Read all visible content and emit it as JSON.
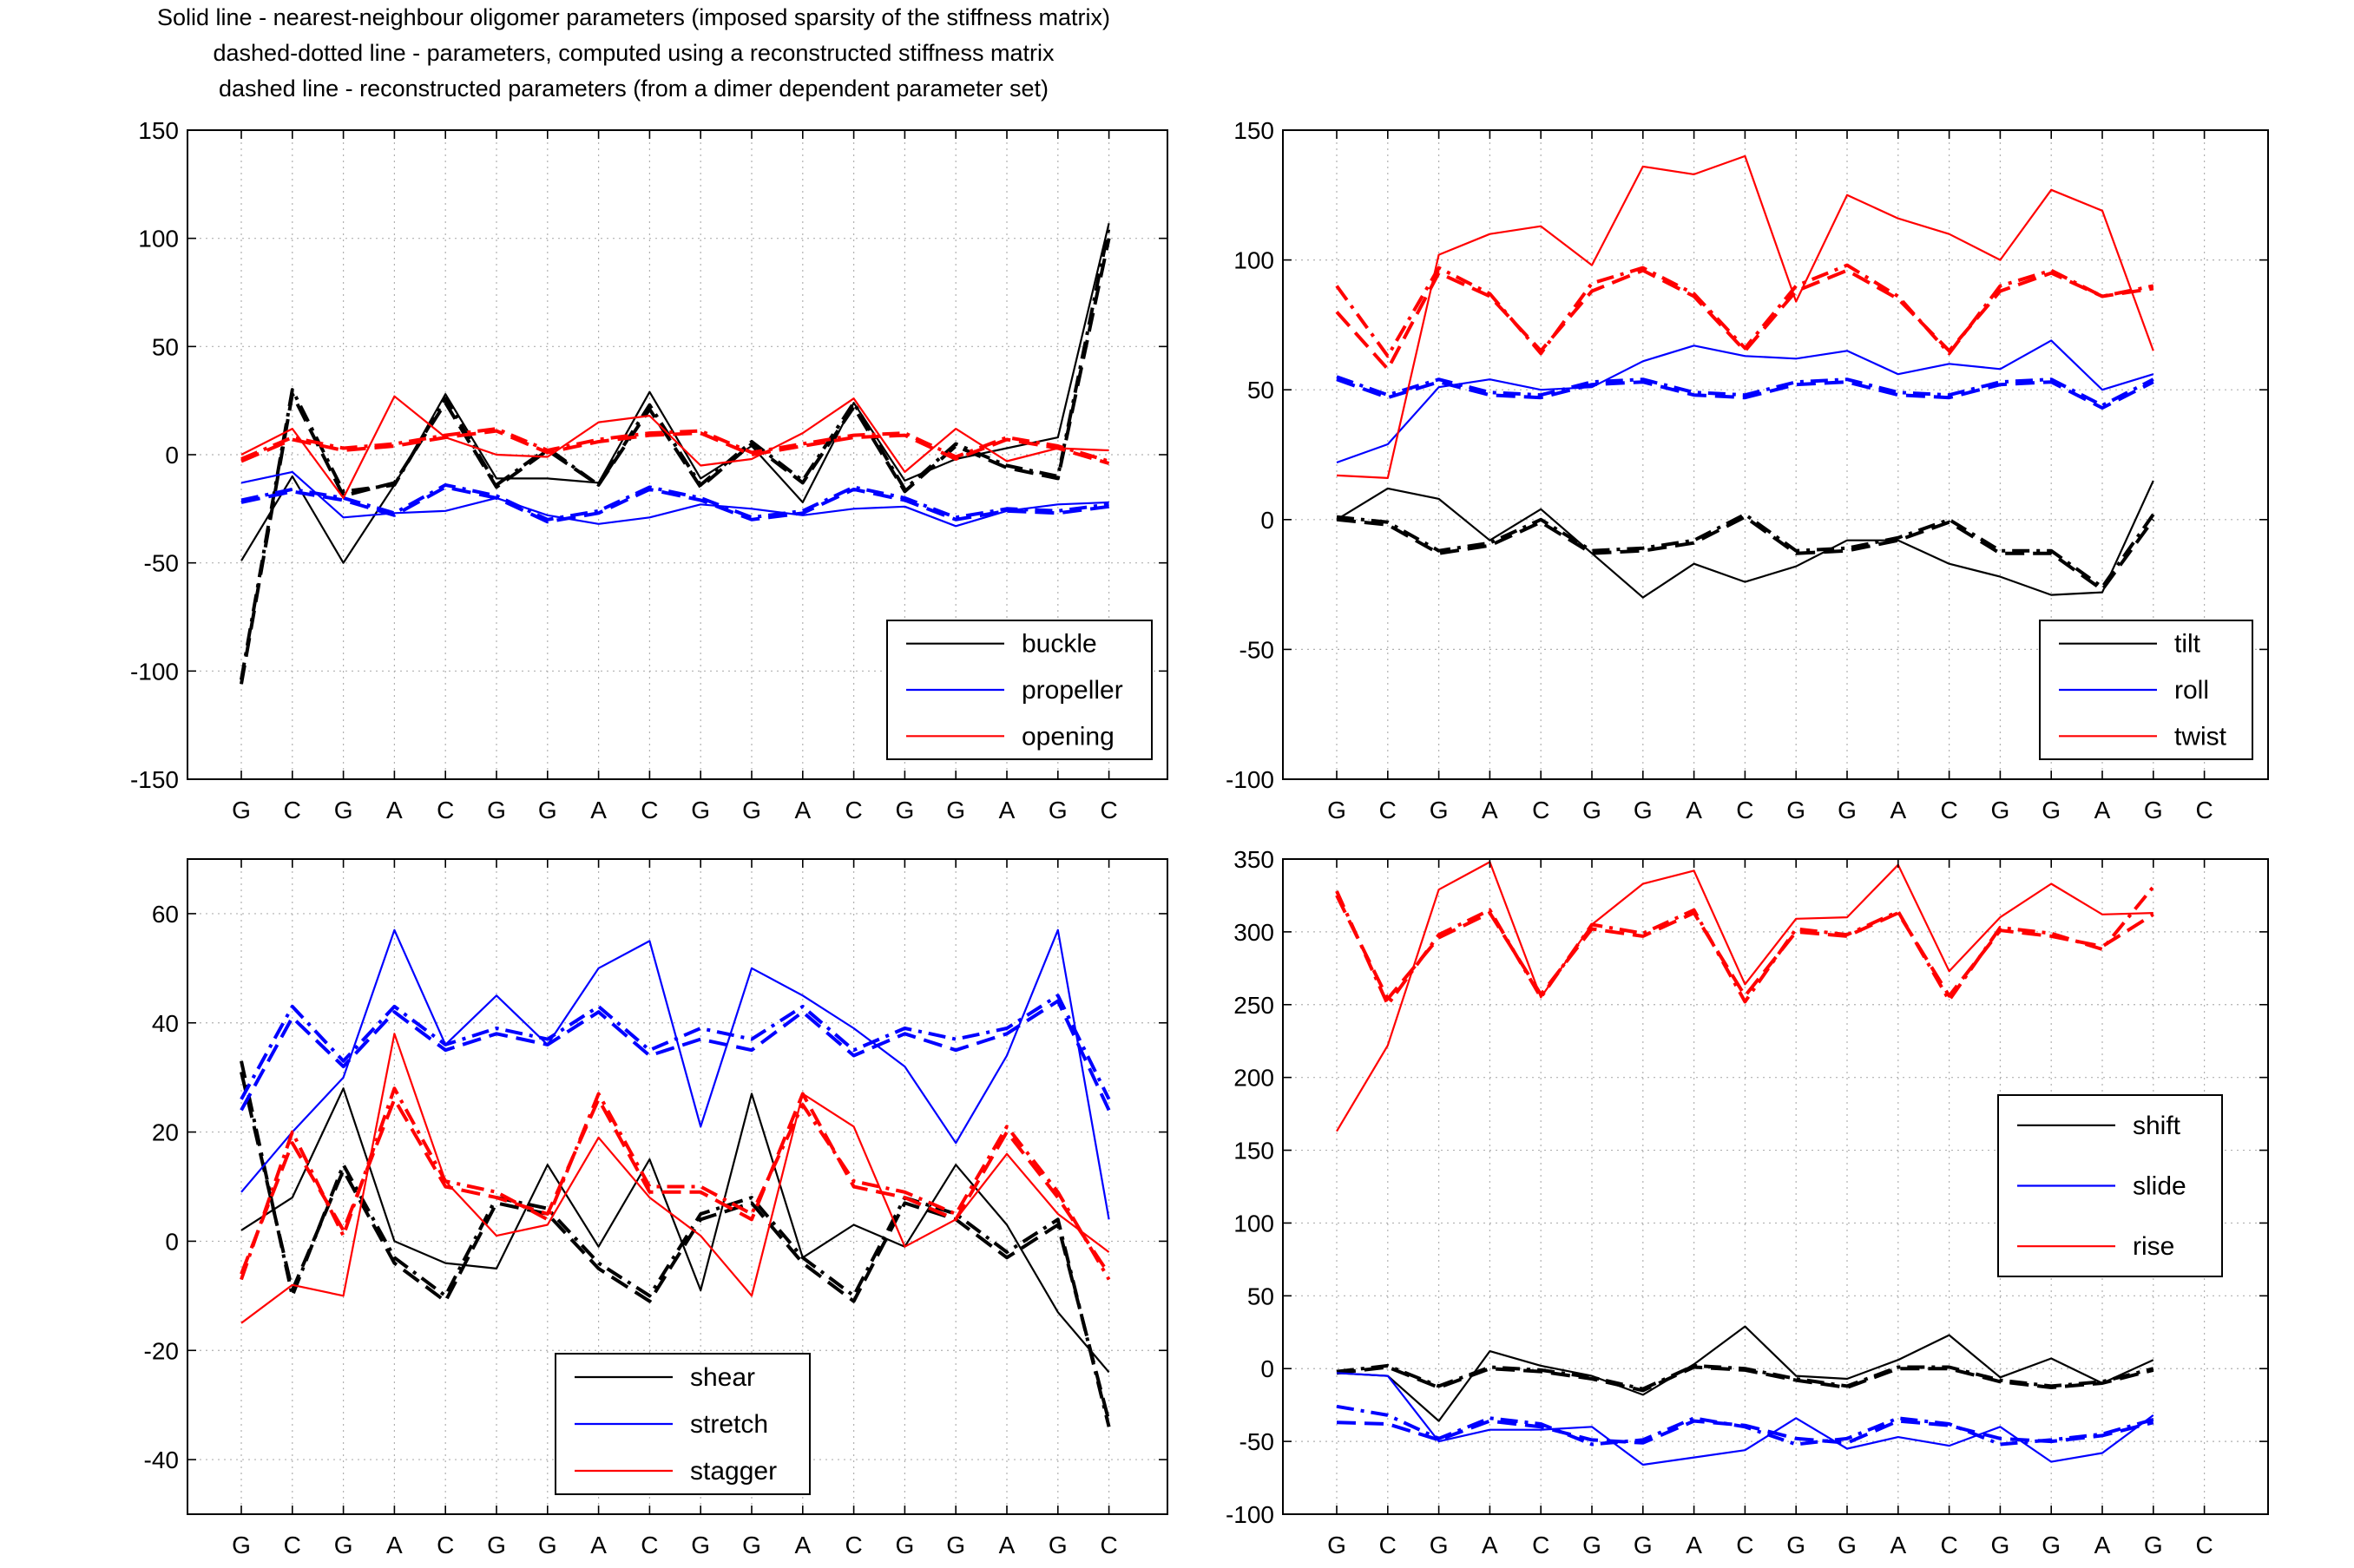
{
  "figure_title": {
    "line1": "Solid line - nearest-neighbour oligomer parameters (imposed sparsity of the stiffness matrix)",
    "line2": "dashed-dotted line - parameters, computed using a reconstructed stiffness matrix",
    "line3": "dashed line - reconstructed parameters (from a dimer dependent parameter set)"
  },
  "colors": {
    "black": "#000000",
    "blue": "#0000ff",
    "red": "#ff0000",
    "grid": "#b0b0b0"
  },
  "line_styles": [
    "solid",
    "dashed-dotted",
    "dashed"
  ],
  "chart_data": [
    {
      "type": "line",
      "x_categories": [
        "G",
        "C",
        "G",
        "A",
        "C",
        "G",
        "G",
        "A",
        "C",
        "G",
        "G",
        "A",
        "C",
        "G",
        "G",
        "A",
        "G",
        "C"
      ],
      "ylim": [
        -150,
        150
      ],
      "yticks": [
        -150,
        -100,
        -50,
        0,
        50,
        100,
        150
      ],
      "grid": true,
      "legend_position": "bottom-right",
      "legend": [
        "buckle",
        "propeller",
        "opening"
      ],
      "series": [
        {
          "name": "buckle",
          "color": "black",
          "style": "solid",
          "values": [
            -49,
            -10,
            -50,
            -14,
            28,
            -11,
            -11,
            -13,
            29,
            -11,
            4,
            -22,
            24,
            -12,
            -2,
            3,
            8,
            107
          ]
        },
        {
          "name": "buckle",
          "color": "black",
          "style": "dashed-dotted",
          "values": [
            -104,
            30,
            -17,
            -14,
            26,
            -14,
            3,
            -14,
            23,
            -14,
            6,
            -12,
            24,
            -16,
            5,
            -5,
            -10,
            105
          ]
        },
        {
          "name": "buckle",
          "color": "black",
          "style": "dashed",
          "values": [
            -106,
            28,
            -19,
            -13,
            24,
            -15,
            2,
            -14,
            21,
            -15,
            5,
            -13,
            22,
            -17,
            4,
            -6,
            -11,
            100
          ]
        },
        {
          "name": "propeller",
          "color": "blue",
          "style": "solid",
          "values": [
            -13,
            -8,
            -29,
            -27,
            -26,
            -20,
            -28,
            -32,
            -29,
            -23,
            -25,
            -28,
            -25,
            -24,
            -33,
            -26,
            -23,
            -22
          ]
        },
        {
          "name": "propeller",
          "color": "blue",
          "style": "dashed-dotted",
          "values": [
            -21,
            -16,
            -20,
            -27,
            -14,
            -19,
            -30,
            -26,
            -15,
            -20,
            -29,
            -26,
            -15,
            -20,
            -29,
            -25,
            -26,
            -23
          ]
        },
        {
          "name": "propeller",
          "color": "blue",
          "style": "dashed",
          "values": [
            -22,
            -17,
            -21,
            -28,
            -15,
            -20,
            -31,
            -27,
            -16,
            -21,
            -30,
            -27,
            -16,
            -21,
            -30,
            -26,
            -27,
            -24
          ]
        },
        {
          "name": "opening",
          "color": "red",
          "style": "solid",
          "values": [
            0,
            12,
            -20,
            27,
            8,
            0,
            -1,
            15,
            18,
            -5,
            -2,
            10,
            26,
            -8,
            12,
            -3,
            3,
            2
          ]
        },
        {
          "name": "opening",
          "color": "red",
          "style": "dashed-dotted",
          "values": [
            -2,
            8,
            3,
            5,
            9,
            12,
            2,
            7,
            10,
            11,
            1,
            5,
            9,
            10,
            -1,
            8,
            4,
            -3
          ]
        },
        {
          "name": "opening",
          "color": "red",
          "style": "dashed",
          "values": [
            -3,
            7,
            2,
            4,
            8,
            11,
            1,
            6,
            9,
            10,
            0,
            4,
            8,
            9,
            -2,
            7,
            3,
            -4
          ]
        }
      ]
    },
    {
      "type": "line",
      "x_categories": [
        "G",
        "C",
        "G",
        "A",
        "C",
        "G",
        "G",
        "A",
        "C",
        "G",
        "G",
        "A",
        "C",
        "G",
        "G",
        "A",
        "G",
        "C"
      ],
      "ylim": [
        -100,
        150
      ],
      "yticks": [
        -100,
        -50,
        0,
        50,
        100,
        150
      ],
      "grid": true,
      "legend_position": "bottom-right",
      "legend": [
        "tilt",
        "roll",
        "twist"
      ],
      "series": [
        {
          "name": "tilt",
          "color": "black",
          "style": "solid",
          "values": [
            0,
            12,
            8,
            -8,
            4,
            -13,
            -30,
            -17,
            -24,
            -18,
            -8,
            -8,
            -17,
            -22,
            -29,
            -28,
            15
          ]
        },
        {
          "name": "tilt",
          "color": "black",
          "style": "dashed-dotted",
          "values": [
            1,
            -1,
            -12,
            -9,
            0,
            -12,
            -11,
            -8,
            2,
            -12,
            -11,
            -7,
            0,
            -12,
            -12,
            -26,
            2
          ]
        },
        {
          "name": "tilt",
          "color": "black",
          "style": "dashed",
          "values": [
            0,
            -2,
            -13,
            -10,
            -1,
            -13,
            -12,
            -9,
            1,
            -13,
            -12,
            -8,
            -1,
            -13,
            -13,
            -27,
            0
          ]
        },
        {
          "name": "roll",
          "color": "blue",
          "style": "solid",
          "values": [
            22,
            29,
            51,
            54,
            50,
            51,
            61,
            67,
            63,
            62,
            65,
            56,
            60,
            58,
            69,
            50,
            56
          ]
        },
        {
          "name": "roll",
          "color": "blue",
          "style": "dashed-dotted",
          "values": [
            55,
            48,
            54,
            49,
            48,
            53,
            54,
            49,
            48,
            53,
            54,
            49,
            48,
            53,
            54,
            44,
            54
          ]
        },
        {
          "name": "roll",
          "color": "blue",
          "style": "dashed",
          "values": [
            54,
            47,
            53,
            48,
            47,
            52,
            53,
            48,
            47,
            52,
            53,
            48,
            47,
            52,
            53,
            43,
            53
          ]
        },
        {
          "name": "twist",
          "color": "red",
          "style": "solid",
          "values": [
            17,
            16,
            102,
            110,
            113,
            98,
            136,
            133,
            140,
            84,
            125,
            116,
            110,
            100,
            127,
            119,
            65
          ]
        },
        {
          "name": "twist",
          "color": "red",
          "style": "dashed-dotted",
          "values": [
            90,
            63,
            97,
            87,
            64,
            91,
            97,
            87,
            66,
            90,
            98,
            86,
            64,
            90,
            96,
            86,
            90
          ]
        },
        {
          "name": "twist",
          "color": "red",
          "style": "dashed",
          "values": [
            80,
            58,
            95,
            86,
            65,
            88,
            96,
            86,
            65,
            88,
            96,
            85,
            65,
            88,
            95,
            86,
            89
          ]
        }
      ]
    },
    {
      "type": "line",
      "x_categories": [
        "G",
        "C",
        "G",
        "A",
        "C",
        "G",
        "G",
        "A",
        "C",
        "G",
        "G",
        "A",
        "C",
        "G",
        "G",
        "A",
        "G",
        "C"
      ],
      "ylim": [
        -50,
        70
      ],
      "yticks": [
        -40,
        -20,
        0,
        20,
        40,
        60
      ],
      "grid": true,
      "legend_position": "bottom-center",
      "legend": [
        "shear",
        "stretch",
        "stagger"
      ],
      "series": [
        {
          "name": "shear",
          "color": "black",
          "style": "solid",
          "values": [
            2,
            8,
            28,
            0,
            -4,
            -5,
            14,
            -1,
            15,
            -9,
            27,
            -3,
            3,
            -1,
            14,
            3,
            -13,
            -24
          ]
        },
        {
          "name": "shear",
          "color": "black",
          "style": "dashed-dotted",
          "values": [
            33,
            -10,
            14,
            -3,
            -10,
            8,
            6,
            -4,
            -10,
            5,
            8,
            -3,
            -10,
            8,
            5,
            -2,
            4,
            -34
          ]
        },
        {
          "name": "shear",
          "color": "black",
          "style": "dashed",
          "values": [
            31,
            -9,
            13,
            -4,
            -11,
            7,
            5,
            -5,
            -11,
            4,
            7,
            -4,
            -11,
            7,
            4,
            -3,
            3,
            -33
          ]
        },
        {
          "name": "stretch",
          "color": "blue",
          "style": "solid",
          "values": [
            9,
            20,
            30,
            57,
            36,
            45,
            36,
            50,
            55,
            21,
            50,
            45,
            39,
            32,
            18,
            34,
            57,
            4
          ]
        },
        {
          "name": "stretch",
          "color": "blue",
          "style": "dashed-dotted",
          "values": [
            26,
            43,
            33,
            43,
            36,
            39,
            37,
            43,
            35,
            39,
            37,
            43,
            35,
            39,
            37,
            39,
            45,
            26
          ]
        },
        {
          "name": "stretch",
          "color": "blue",
          "style": "dashed",
          "values": [
            24,
            41,
            32,
            42,
            35,
            38,
            36,
            42,
            34,
            37,
            35,
            42,
            34,
            38,
            35,
            38,
            44,
            24
          ]
        },
        {
          "name": "stagger",
          "color": "red",
          "style": "solid",
          "values": [
            -15,
            -8,
            -10,
            38,
            11,
            1,
            3,
            19,
            8,
            1,
            -10,
            27,
            21,
            -1,
            4,
            16,
            5,
            -2
          ]
        },
        {
          "name": "stagger",
          "color": "red",
          "style": "dashed-dotted",
          "values": [
            -7,
            20,
            1,
            28,
            11,
            9,
            4,
            27,
            10,
            10,
            5,
            25,
            11,
            9,
            5,
            21,
            9,
            -7
          ]
        },
        {
          "name": "stagger",
          "color": "red",
          "style": "dashed",
          "values": [
            -6,
            18,
            2,
            26,
            10,
            8,
            5,
            26,
            9,
            9,
            4,
            27,
            10,
            8,
            4,
            20,
            8,
            -6
          ]
        }
      ]
    },
    {
      "type": "line",
      "x_categories": [
        "G",
        "C",
        "G",
        "A",
        "C",
        "G",
        "G",
        "A",
        "C",
        "G",
        "G",
        "A",
        "C",
        "G",
        "G",
        "A",
        "G",
        "C"
      ],
      "ylim": [
        -100,
        350
      ],
      "yticks": [
        -100,
        -50,
        0,
        50,
        100,
        150,
        200,
        250,
        300,
        350
      ],
      "grid": true,
      "legend_position": "right",
      "legend": [
        "shift",
        "slide",
        "rise"
      ],
      "series": [
        {
          "name": "shift",
          "color": "black",
          "style": "solid",
          "values": [
            -3,
            -5,
            -36,
            12,
            2,
            -5,
            -18,
            3,
            29,
            -5,
            -7,
            6,
            23,
            -6,
            7,
            -10,
            6
          ]
        },
        {
          "name": "shift",
          "color": "black",
          "style": "dashed-dotted",
          "values": [
            -2,
            2,
            -12,
            1,
            -1,
            -6,
            -14,
            2,
            0,
            -7,
            -12,
            1,
            1,
            -8,
            -12,
            -9,
            0
          ]
        },
        {
          "name": "shift",
          "color": "black",
          "style": "dashed",
          "values": [
            -3,
            1,
            -13,
            0,
            -2,
            -7,
            -15,
            1,
            -1,
            -8,
            -13,
            0,
            0,
            -9,
            -13,
            -10,
            -1
          ]
        },
        {
          "name": "slide",
          "color": "blue",
          "style": "solid",
          "values": [
            -3,
            -5,
            -50,
            -42,
            -42,
            -40,
            -66,
            -61,
            -56,
            -34,
            -55,
            -47,
            -53,
            -40,
            -64,
            -58,
            -32
          ]
        },
        {
          "name": "slide",
          "color": "blue",
          "style": "dashed-dotted",
          "values": [
            -26,
            -32,
            -48,
            -34,
            -38,
            -52,
            -49,
            -34,
            -40,
            -52,
            -48,
            -34,
            -38,
            -52,
            -49,
            -45,
            -35
          ]
        },
        {
          "name": "slide",
          "color": "blue",
          "style": "dashed",
          "values": [
            -37,
            -38,
            -49,
            -36,
            -40,
            -49,
            -51,
            -36,
            -39,
            -48,
            -51,
            -36,
            -39,
            -48,
            -50,
            -46,
            -37
          ]
        },
        {
          "name": "rise",
          "color": "red",
          "style": "solid",
          "values": [
            163,
            222,
            329,
            348,
            255,
            305,
            333,
            342,
            264,
            309,
            310,
            346,
            273,
            310,
            333,
            312,
            313
          ]
        },
        {
          "name": "rise",
          "color": "red",
          "style": "dashed-dotted",
          "values": [
            328,
            250,
            298,
            315,
            255,
            305,
            299,
            315,
            252,
            302,
            298,
            314,
            253,
            303,
            299,
            288,
            331
          ]
        },
        {
          "name": "rise",
          "color": "red",
          "style": "dashed",
          "values": [
            325,
            254,
            296,
            313,
            257,
            302,
            297,
            313,
            256,
            300,
            297,
            313,
            256,
            301,
            297,
            290,
            312
          ]
        }
      ]
    }
  ]
}
